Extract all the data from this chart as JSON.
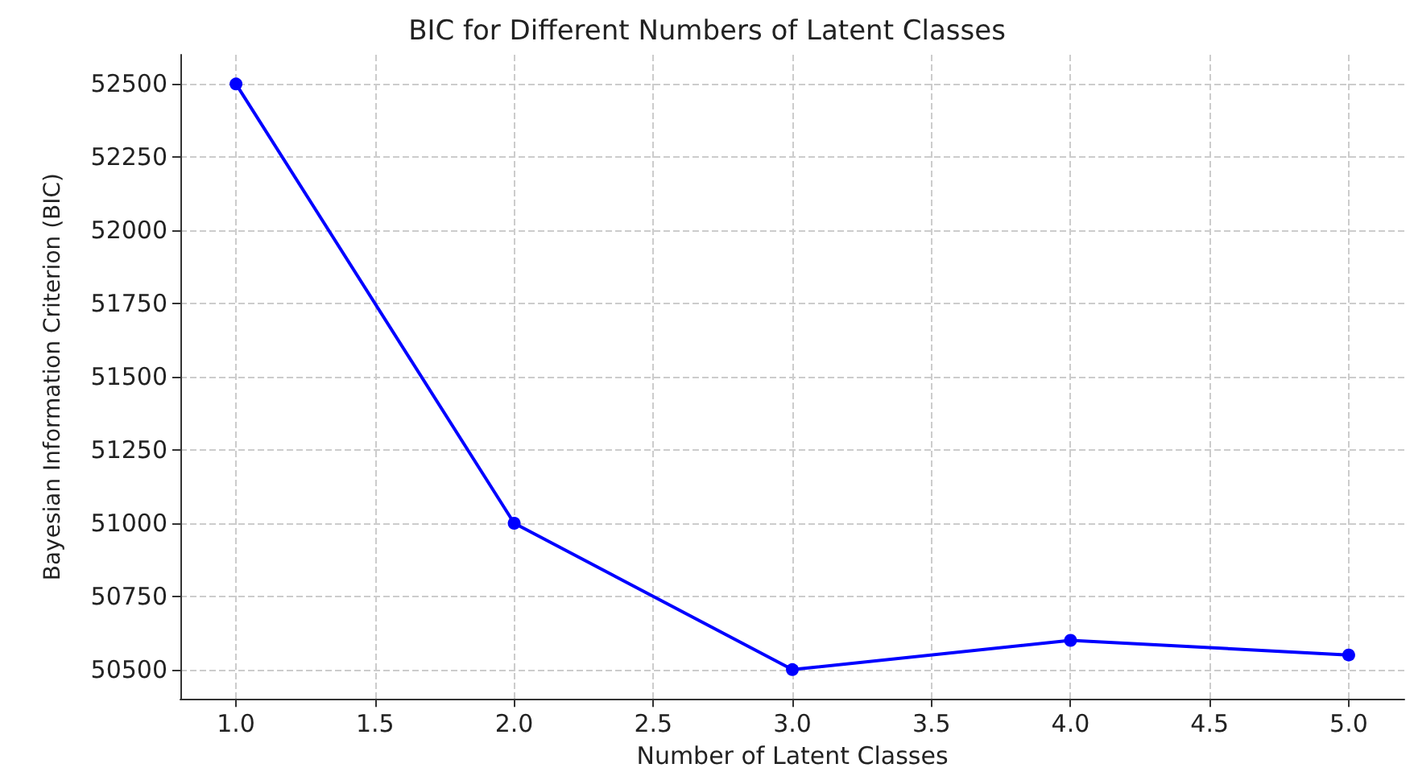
{
  "chart_data": {
    "type": "line",
    "title": "BIC for Different Numbers of Latent Classes",
    "xlabel": "Number of Latent Classes",
    "ylabel": "Bayesian Information Criterion (BIC)",
    "x": [
      1,
      2,
      3,
      4,
      5
    ],
    "series": [
      {
        "color": "#0000ff",
        "values": [
          52500,
          51000,
          50500,
          50600,
          50550
        ]
      }
    ],
    "xlim": [
      0.8,
      5.2
    ],
    "xticks": [
      {
        "value": 1,
        "label": "1.0"
      },
      {
        "value": 1.5,
        "label": "1.5"
      },
      {
        "value": 2,
        "label": "2.0"
      },
      {
        "value": 2.5,
        "label": "2.5"
      },
      {
        "value": 3,
        "label": "3.0"
      },
      {
        "value": 3.5,
        "label": "3.5"
      },
      {
        "value": 4,
        "label": "4.0"
      },
      {
        "value": 4.5,
        "label": "4.5"
      },
      {
        "value": 5,
        "label": "5.0"
      }
    ],
    "ylim": [
      50400,
      52600
    ],
    "yticks": [
      50500,
      50750,
      51000,
      51250,
      51500,
      51750,
      52000,
      52250,
      52500
    ],
    "grid": true,
    "marker": "circle",
    "line_style": "solid"
  }
}
